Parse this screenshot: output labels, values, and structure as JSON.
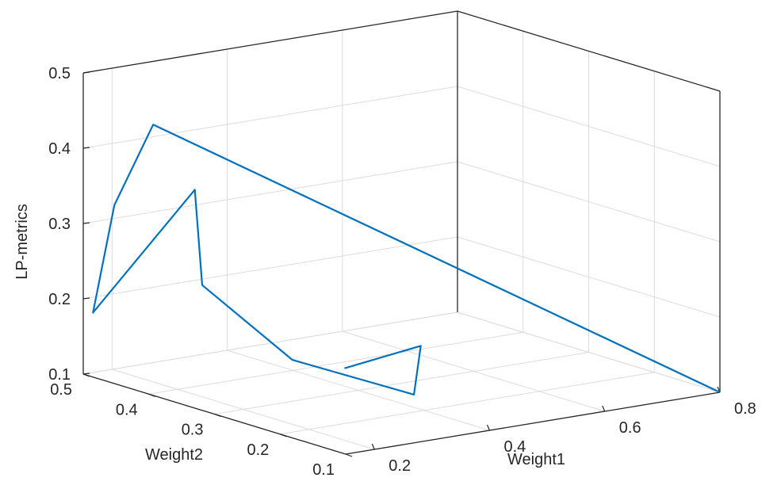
{
  "chart_data": {
    "type": "line",
    "projection": "3d",
    "xlabel": "Weight1",
    "ylabel": "Weight2",
    "zlabel": "LP-metrics",
    "xlim": [
      0.15,
      0.8
    ],
    "ylim": [
      0.1,
      0.5
    ],
    "zlim": [
      0.1,
      0.5
    ],
    "xticks": [
      "0.2",
      "0.4",
      "0.6",
      "0.8"
    ],
    "yticks": [
      "0.1",
      "0.2",
      "0.3",
      "0.4",
      "0.5"
    ],
    "zticks": [
      "0.1",
      "0.2",
      "0.3",
      "0.4",
      "0.5"
    ],
    "grid": true,
    "color": "#0072BD",
    "series": [
      {
        "points": [
          {
            "x": 0.41,
            "y": 0.33,
            "z": 0.12
          },
          {
            "x": 0.44,
            "y": 0.24,
            "z": 0.17
          },
          {
            "x": 0.28,
            "y": 0.11,
            "z": 0.16
          },
          {
            "x": 0.16,
            "y": 0.19,
            "z": 0.2
          },
          {
            "x": 0.14,
            "y": 0.31,
            "z": 0.27
          },
          {
            "x": 0.15,
            "y": 0.33,
            "z": 0.39
          },
          {
            "x": 0.11,
            "y": 0.45,
            "z": 0.2
          },
          {
            "x": 0.17,
            "y": 0.47,
            "z": 0.33
          },
          {
            "x": 0.26,
            "y": 0.49,
            "z": 0.42
          },
          {
            "x": 0.8,
            "y": 0.1,
            "z": 0.1
          }
        ]
      }
    ]
  }
}
